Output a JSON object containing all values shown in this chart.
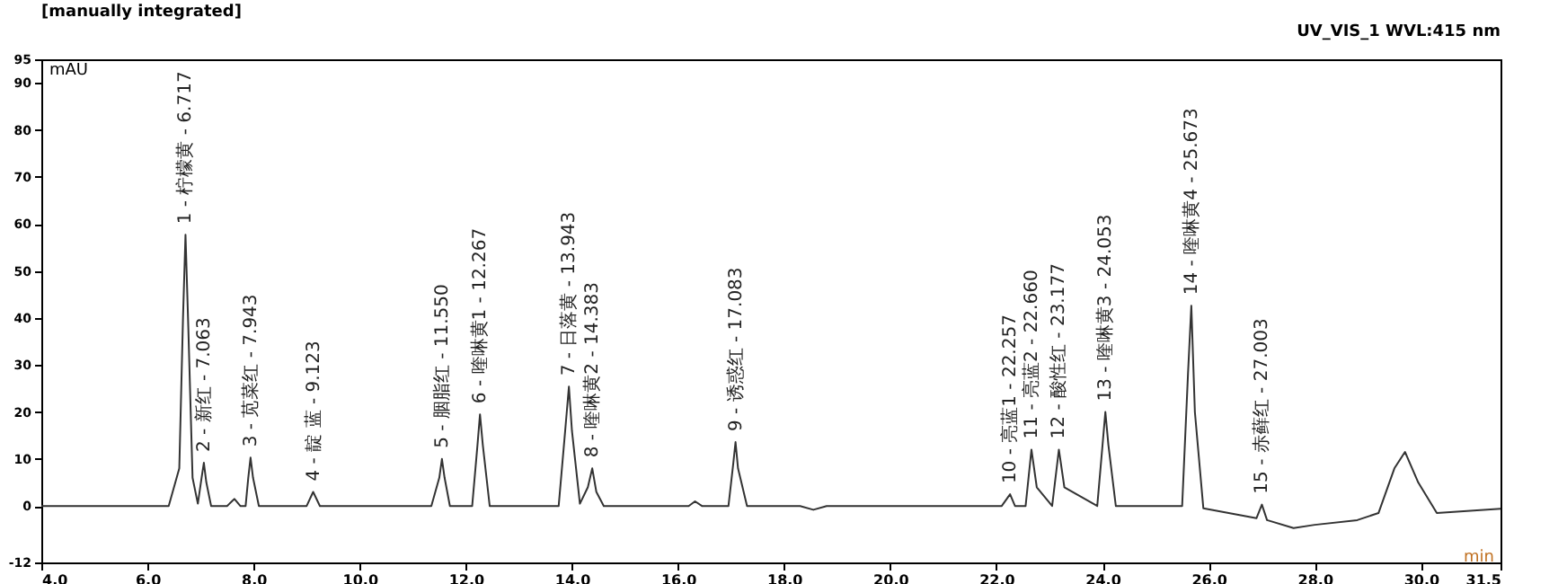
{
  "chart_data": {
    "type": "line",
    "title": "[manually integrated]",
    "xlabel": "min",
    "ylabel": "mAU",
    "x": [
      4,
      6.4,
      6.6,
      6.67,
      6.717,
      6.77,
      6.85,
      6.95,
      7.02,
      7.063,
      7.11,
      7.2,
      7.5,
      7.64,
      7.75,
      7.85,
      7.9,
      7.943,
      7.99,
      8.1,
      8.5,
      9.0,
      9.123,
      9.25,
      11.35,
      11.5,
      11.55,
      11.6,
      11.7,
      12.12,
      12.22,
      12.267,
      12.32,
      12.45,
      13.75,
      13.88,
      13.943,
      14.0,
      14.15,
      14.3,
      14.383,
      14.46,
      14.6,
      16.2,
      16.32,
      16.45,
      16.95,
      17.04,
      17.083,
      17.13,
      17.3,
      18.3,
      18.55,
      18.8,
      22.1,
      22.257,
      22.35,
      22.55,
      22.66,
      22.76,
      23.05,
      23.177,
      23.28,
      23.9,
      24.0,
      24.053,
      24.11,
      24.25,
      25.5,
      25.61,
      25.673,
      25.74,
      25.9,
      26.9,
      27.003,
      27.1,
      27.6,
      28.0,
      28.8,
      29.2,
      29.5,
      29.7,
      29.95,
      30.3,
      31.5
    ],
    "series": [
      {
        "color": "#333333",
        "values": [
          0,
          0,
          8,
          40,
          57.7,
          38,
          6,
          0.5,
          6,
          9.2,
          5,
          0,
          0,
          1.5,
          0,
          0,
          6,
          10.3,
          6,
          0,
          0,
          0,
          3,
          0,
          0,
          6,
          10,
          6,
          0,
          0,
          13,
          19.5,
          13,
          0,
          0,
          17,
          25.4,
          16,
          0.5,
          4,
          8,
          3,
          0,
          0,
          1,
          0,
          0,
          9,
          13.6,
          8,
          0,
          0,
          -0.8,
          0,
          0,
          2.5,
          0,
          0,
          12,
          4,
          0,
          12,
          4,
          0,
          13,
          20,
          13,
          0,
          0,
          28,
          42.6,
          20,
          -0.5,
          -2.6,
          0.3,
          -3,
          -4.7,
          -4,
          -3,
          -1.5,
          8,
          11.5,
          5,
          -1.5,
          -0.6
        ]
      }
    ],
    "xlim": [
      4,
      31.5
    ],
    "ylim": [
      -12,
      95
    ],
    "xticks": [
      {
        "value": 4,
        "label": "4.0"
      },
      {
        "value": 6,
        "label": "6.0"
      },
      {
        "value": 8,
        "label": "8.0"
      },
      {
        "value": 10,
        "label": "10.0"
      },
      {
        "value": 12,
        "label": "12.0"
      },
      {
        "value": 14,
        "label": "14.0"
      },
      {
        "value": 16,
        "label": "16.0"
      },
      {
        "value": 18,
        "label": "18.0"
      },
      {
        "value": 20,
        "label": "20.0"
      },
      {
        "value": 22,
        "label": "22.0"
      },
      {
        "value": 24,
        "label": "24.0"
      },
      {
        "value": 26,
        "label": "26.0"
      },
      {
        "value": 28,
        "label": "28.0"
      },
      {
        "value": 30,
        "label": "30.0"
      },
      31.5
    ],
    "yticks": [
      -12,
      0,
      10,
      20,
      30,
      40,
      50,
      60,
      70,
      80,
      90,
      95
    ],
    "annotations": [
      "UV_VIS_1 WVL:415 nm",
      {
        "text": "1 - 柠檬黄 - 6.717",
        "x": 6.717,
        "y": 57.7
      },
      {
        "text": "2 - 新红 - 7.063",
        "x": 7.063,
        "y": 9.2
      },
      {
        "text": "3 - 苋菜红 - 7.943",
        "x": 7.943,
        "y": 10.3
      },
      {
        "text": "4 - 靛 蓝 - 9.123",
        "x": 9.123,
        "y": 3
      },
      {
        "text": "5 - 胭脂红 - 11.550",
        "x": 11.55,
        "y": 10
      },
      {
        "text": "6 - 喹啉黄1 - 12.267",
        "x": 12.267,
        "y": 19.5
      },
      {
        "text": "7 - 日落黄 - 13.943",
        "x": 13.943,
        "y": 25.4
      },
      {
        "text": "8 - 喹啉黄2 - 14.383",
        "x": 14.383,
        "y": 8
      },
      {
        "text": "9 - 诱惑红 - 17.083",
        "x": 17.083,
        "y": 13.6
      },
      {
        "text": "10 - 亮蓝1 - 22.257",
        "x": 22.257,
        "y": 2.5
      },
      {
        "text": "11 - 亮蓝2 - 22.660",
        "x": 22.66,
        "y": 12
      },
      {
        "text": "12 - 酸性红 - 23.177",
        "x": 23.177,
        "y": 12
      },
      {
        "text": "13 - 喹啉黄3 - 24.053",
        "x": 24.053,
        "y": 20
      },
      {
        "text": "14 - 喹啉黄4 - 25.673",
        "x": 25.673,
        "y": 42.6
      },
      {
        "text": "15 - 赤藓红 - 27.003",
        "x": 27.003,
        "y": 0.3
      }
    ]
  }
}
